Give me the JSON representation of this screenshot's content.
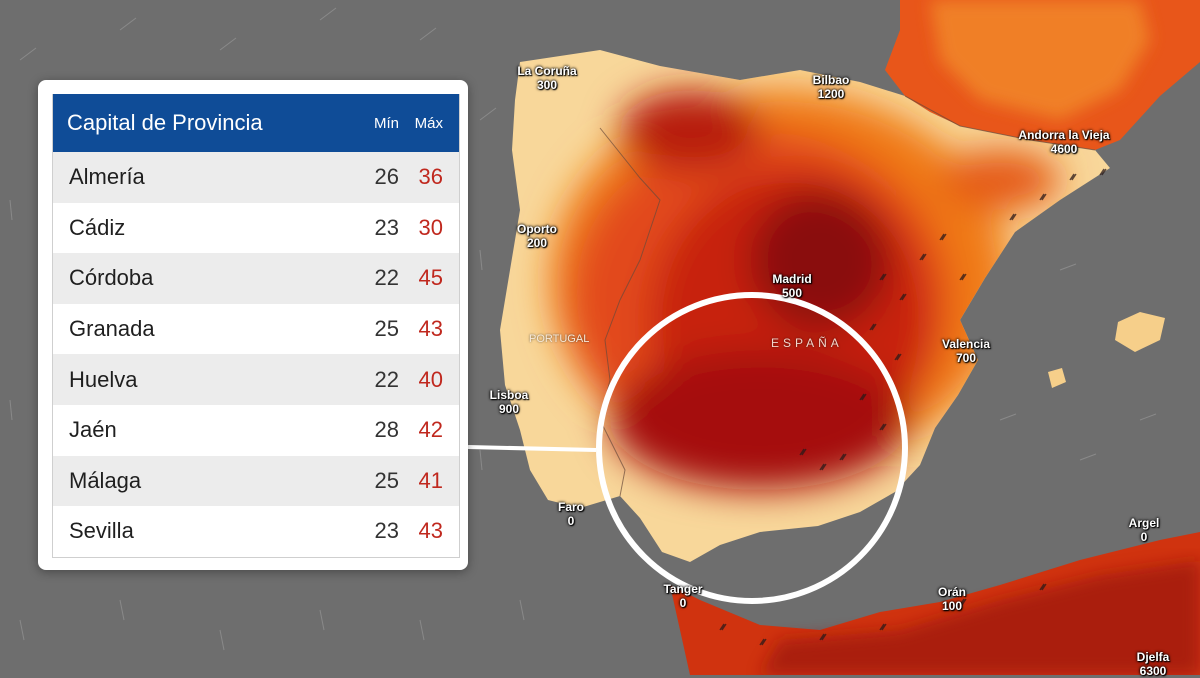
{
  "table": {
    "header": {
      "name": "Capital de Provincia",
      "min": "Mín",
      "max": "Máx"
    },
    "rows": [
      {
        "city": "Almería",
        "min": "26",
        "max": "36"
      },
      {
        "city": "Cádiz",
        "min": "23",
        "max": "30"
      },
      {
        "city": "Córdoba",
        "min": "22",
        "max": "45"
      },
      {
        "city": "Granada",
        "min": "25",
        "max": "43"
      },
      {
        "city": "Huelva",
        "min": "22",
        "max": "40"
      },
      {
        "city": "Jaén",
        "min": "28",
        "max": "42"
      },
      {
        "city": "Málaga",
        "min": "25",
        "max": "41"
      },
      {
        "city": "Sevilla",
        "min": "23",
        "max": "43"
      }
    ]
  },
  "map": {
    "countries": {
      "spain": "ESPAÑA",
      "portugal": "PORTUGAL"
    },
    "cities": [
      {
        "name": "La Coruña",
        "value": "300"
      },
      {
        "name": "Bilbao",
        "value": "1200"
      },
      {
        "name": "Andorra la Vieja",
        "value": "4600"
      },
      {
        "name": "Oporto",
        "value": "200"
      },
      {
        "name": "Madrid",
        "value": "500"
      },
      {
        "name": "Valencia",
        "value": "700"
      },
      {
        "name": "Lisboa",
        "value": "900"
      },
      {
        "name": "Faro",
        "value": "0"
      },
      {
        "name": "Tanger",
        "value": "0"
      },
      {
        "name": "Orán",
        "value": "100"
      },
      {
        "name": "Argel",
        "value": "0"
      },
      {
        "name": "Djelfa",
        "value": "6300"
      }
    ]
  },
  "colors": {
    "sea": "#6e6e6e",
    "heat_low": "#f6c27a",
    "heat_mid": "#f07a18",
    "heat_high": "#d9300e",
    "heat_extreme": "#8a0c08",
    "table_header": "#0f4c97",
    "max_value": "#c0281e"
  }
}
